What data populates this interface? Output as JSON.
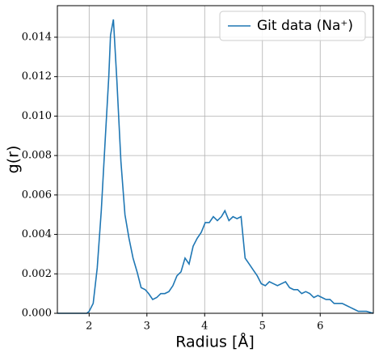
{
  "chart_data": {
    "type": "line",
    "xlabel": "Radius [Å]",
    "ylabel": "g(r)",
    "x": [
      1.45,
      1.96,
      2.0,
      2.07,
      2.14,
      2.21,
      2.28,
      2.34,
      2.37,
      2.42,
      2.48,
      2.55,
      2.62,
      2.69,
      2.76,
      2.83,
      2.9,
      2.97,
      3.03,
      3.1,
      3.17,
      3.24,
      3.31,
      3.38,
      3.45,
      3.52,
      3.59,
      3.66,
      3.73,
      3.8,
      3.87,
      3.94,
      4.01,
      4.08,
      4.15,
      4.22,
      4.29,
      4.35,
      4.42,
      4.49,
      4.56,
      4.63,
      4.7,
      4.77,
      4.84,
      4.91,
      4.98,
      5.05,
      5.12,
      5.19,
      5.26,
      5.33,
      5.4,
      5.47,
      5.54,
      5.61,
      5.68,
      5.75,
      5.82,
      5.89,
      5.96,
      6.03,
      6.1,
      6.17,
      6.24,
      6.31,
      6.38,
      6.45,
      6.52,
      6.59,
      6.66,
      6.73,
      6.8,
      6.92
    ],
    "series": [
      {
        "name": "Git data (Na⁺)",
        "color": "#1f77b4",
        "values": [
          0,
          0,
          0.0001,
          0.0005,
          0.0023,
          0.0052,
          0.0089,
          0.012,
          0.0141,
          0.0149,
          0.0118,
          0.0077,
          0.005,
          0.0038,
          0.0028,
          0.0021,
          0.0013,
          0.0012,
          0.001,
          0.0007,
          0.0008,
          0.001,
          0.001,
          0.0011,
          0.0014,
          0.0019,
          0.0021,
          0.0028,
          0.0025,
          0.0034,
          0.0038,
          0.0041,
          0.0046,
          0.0046,
          0.0049,
          0.0047,
          0.0049,
          0.0052,
          0.0047,
          0.0049,
          0.0048,
          0.0049,
          0.0028,
          0.0025,
          0.0022,
          0.0019,
          0.0015,
          0.0014,
          0.0016,
          0.0015,
          0.0014,
          0.0015,
          0.0016,
          0.0013,
          0.0012,
          0.0012,
          0.001,
          0.0011,
          0.001,
          0.0008,
          0.0009,
          0.0008,
          0.0007,
          0.0007,
          0.0005,
          0.0005,
          0.0005,
          0.0004,
          0.0003,
          0.0002,
          0.0001,
          0.0001,
          0.0001,
          0
        ]
      }
    ],
    "xlim": [
      1.45,
      6.92
    ],
    "ylim": [
      0,
      0.0156
    ],
    "xticks": [
      2,
      3,
      4,
      5,
      6
    ],
    "yticks": [
      {
        "value": 0,
        "label": "0.000"
      },
      {
        "value": 0.002,
        "label": "0.002"
      },
      {
        "value": 0.004,
        "label": "0.004"
      },
      {
        "value": 0.006,
        "label": "0.006"
      },
      {
        "value": 0.008,
        "label": "0.008"
      },
      {
        "value": 0.01,
        "label": "0.010"
      },
      {
        "value": 0.012,
        "label": "0.012"
      },
      {
        "value": 0.014,
        "label": "0.014"
      }
    ],
    "grid": true,
    "legend": "upper right"
  }
}
